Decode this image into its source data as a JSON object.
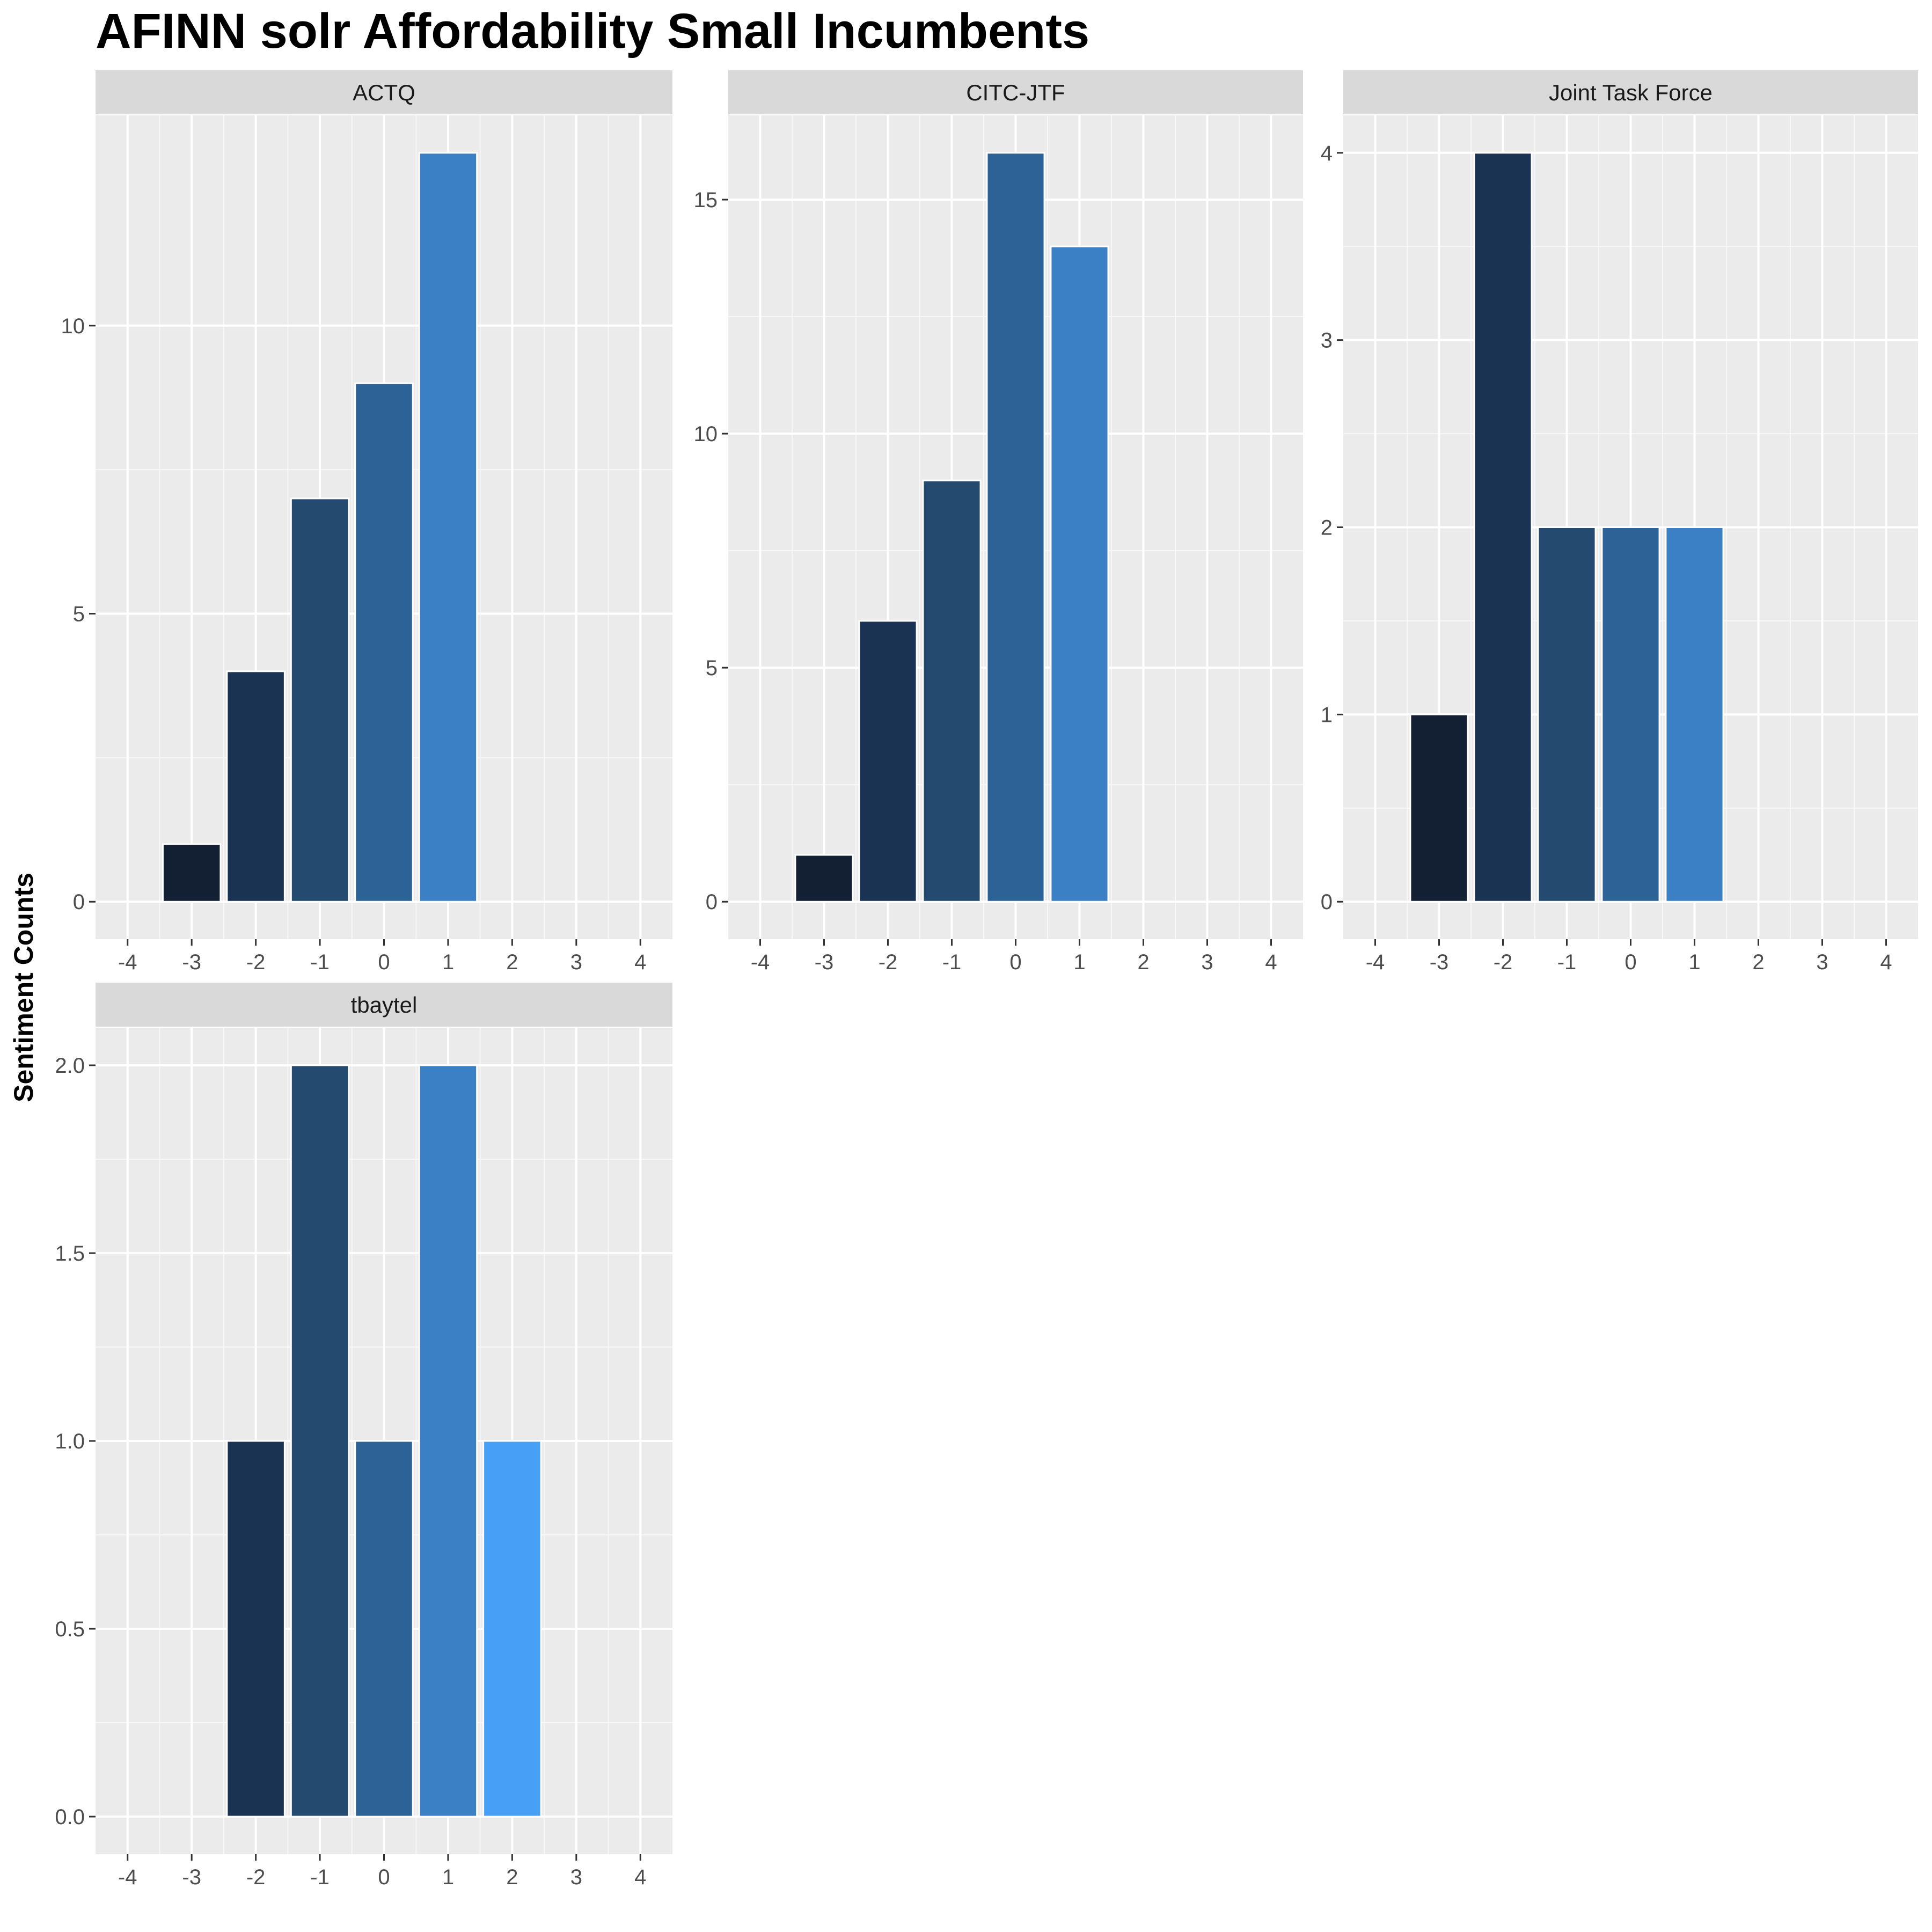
{
  "title": "AFINN solr Affordability Small Incumbents",
  "chart_data": {
    "type": "bar",
    "title": "AFINN solr Affordability Small Incumbents",
    "ylabel": "Sentiment Counts",
    "xlabel": "",
    "grid": true,
    "x_ticks": [
      -4,
      -3,
      -2,
      -1,
      0,
      1,
      2,
      3,
      4
    ],
    "xlim": [
      -4.5,
      4.5
    ],
    "bar_colors": {
      "-3": "#132033",
      "-2": "#1a3352",
      "-1": "#244a70",
      "0": "#2d6296",
      "1": "#3b7fc4",
      "2": "#47a0f5"
    },
    "panels": [
      {
        "name": "ACTQ",
        "ylim": [
          0,
          13
        ],
        "y_ticks": [
          0,
          5,
          10
        ],
        "y_tick_labels": [
          "0",
          "5",
          "10"
        ],
        "bars": [
          {
            "x": -3,
            "value": 1
          },
          {
            "x": -2,
            "value": 4
          },
          {
            "x": -1,
            "value": 7
          },
          {
            "x": 0,
            "value": 9
          },
          {
            "x": 1,
            "value": 13
          }
        ]
      },
      {
        "name": "CITC-JTF",
        "ylim": [
          0,
          16
        ],
        "y_ticks": [
          0,
          5,
          10,
          15
        ],
        "y_tick_labels": [
          "0",
          "5",
          "10",
          "15"
        ],
        "bars": [
          {
            "x": -3,
            "value": 1
          },
          {
            "x": -2,
            "value": 6
          },
          {
            "x": -1,
            "value": 9
          },
          {
            "x": 0,
            "value": 16
          },
          {
            "x": 1,
            "value": 14
          }
        ]
      },
      {
        "name": "Joint Task Force",
        "ylim": [
          0,
          4
        ],
        "y_ticks": [
          0,
          1,
          2,
          3,
          4
        ],
        "y_tick_labels": [
          "0",
          "1",
          "2",
          "3",
          "4"
        ],
        "bars": [
          {
            "x": -3,
            "value": 1
          },
          {
            "x": -2,
            "value": 4
          },
          {
            "x": -1,
            "value": 2
          },
          {
            "x": 0,
            "value": 2
          },
          {
            "x": 1,
            "value": 2
          }
        ]
      },
      {
        "name": "tbaytel",
        "ylim": [
          0,
          2
        ],
        "y_ticks": [
          0,
          0.5,
          1,
          1.5,
          2
        ],
        "y_tick_labels": [
          "0.0",
          "0.5",
          "1.0",
          "1.5",
          "2.0"
        ],
        "bars": [
          {
            "x": -2,
            "value": 1
          },
          {
            "x": -1,
            "value": 2
          },
          {
            "x": 0,
            "value": 1
          },
          {
            "x": 1,
            "value": 2
          },
          {
            "x": 2,
            "value": 1
          }
        ]
      }
    ]
  }
}
